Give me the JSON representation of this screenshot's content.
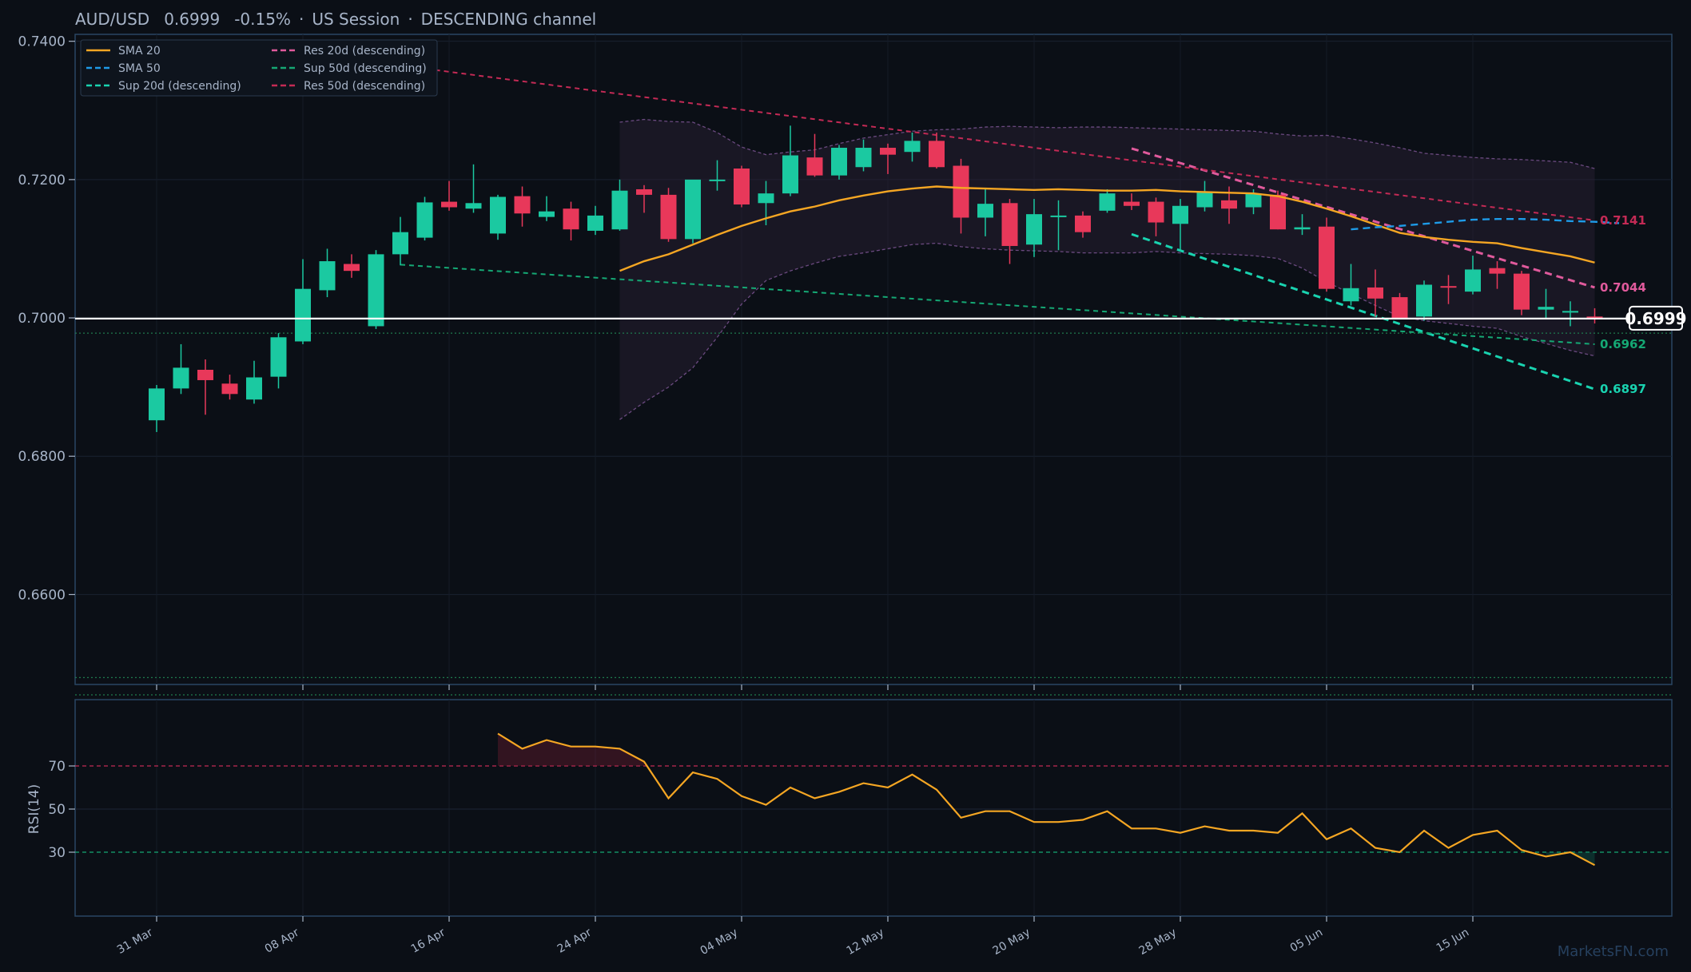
{
  "header": {
    "symbol": "AUD/USD",
    "price": "0.6999",
    "change": "-0.15%",
    "session": "US Session",
    "channel": "DESCENDING channel"
  },
  "watermark": "MarketsFN.com",
  "colors": {
    "background": "#0b0f16",
    "panel_border": "#2a4763",
    "up": "#1bc9a1",
    "down": "#e8385a",
    "sma20": "#f5a623",
    "sma50": "#1e9be8",
    "res20": "#e05a9c",
    "sup20": "#19d3b0",
    "res50": "#c42a55",
    "sup50": "#15a874",
    "rsi": "#f5a623",
    "price_line": "#ffffff"
  },
  "chart_data": [
    {
      "type": "candlestick",
      "title": "AUD/USD 0.6999 -0.15% · US Session · DESCENDING channel",
      "ylim": [
        0.647,
        0.741
      ],
      "yticks": [
        "0.6600",
        "0.6800",
        "0.7000",
        "0.7200",
        "0.7400"
      ],
      "xtick_labels": [
        {
          "label": "31 Mar",
          "index": 0
        },
        {
          "label": "08 Apr",
          "index": 6
        },
        {
          "label": "16 Apr",
          "index": 12
        },
        {
          "label": "24 Apr",
          "index": 18
        },
        {
          "label": "04 May",
          "index": 24
        },
        {
          "label": "12 May",
          "index": 30
        },
        {
          "label": "20 May",
          "index": 36
        },
        {
          "label": "28 May",
          "index": 42
        },
        {
          "label": "05 Jun",
          "index": 48
        },
        {
          "label": "15 Jun",
          "index": 54
        }
      ],
      "candles": [
        [
          0.6852,
          0.6903,
          0.6835,
          0.6898
        ],
        [
          0.6898,
          0.6962,
          0.689,
          0.6928
        ],
        [
          0.6925,
          0.694,
          0.686,
          0.691
        ],
        [
          0.6905,
          0.6918,
          0.6882,
          0.689
        ],
        [
          0.6882,
          0.6938,
          0.6876,
          0.6914
        ],
        [
          0.6915,
          0.6978,
          0.6898,
          0.6972
        ],
        [
          0.6966,
          0.7085,
          0.6962,
          0.7042
        ],
        [
          0.704,
          0.71,
          0.703,
          0.7082
        ],
        [
          0.7078,
          0.7092,
          0.7058,
          0.7068
        ],
        [
          0.6988,
          0.7098,
          0.6984,
          0.7092
        ],
        [
          0.7092,
          0.7146,
          0.7076,
          0.7124
        ],
        [
          0.7116,
          0.7175,
          0.7112,
          0.7167
        ],
        [
          0.7168,
          0.7198,
          0.7155,
          0.716
        ],
        [
          0.7158,
          0.7222,
          0.7152,
          0.7166
        ],
        [
          0.7122,
          0.7178,
          0.7113,
          0.7175
        ],
        [
          0.7176,
          0.719,
          0.7132,
          0.7151
        ],
        [
          0.7146,
          0.7176,
          0.714,
          0.7154
        ],
        [
          0.7158,
          0.7168,
          0.7112,
          0.7128
        ],
        [
          0.7126,
          0.7162,
          0.712,
          0.7148
        ],
        [
          0.7128,
          0.72,
          0.7126,
          0.7184
        ],
        [
          0.7186,
          0.7192,
          0.7152,
          0.7178
        ],
        [
          0.7178,
          0.7188,
          0.711,
          0.7114
        ],
        [
          0.7114,
          0.7198,
          0.7108,
          0.72
        ],
        [
          0.72,
          0.7228,
          0.7184,
          0.72
        ],
        [
          0.7216,
          0.722,
          0.716,
          0.7164
        ],
        [
          0.7166,
          0.7198,
          0.7134,
          0.718
        ],
        [
          0.718,
          0.7278,
          0.7176,
          0.7235
        ],
        [
          0.7232,
          0.7266,
          0.7204,
          0.7206
        ],
        [
          0.7206,
          0.725,
          0.72,
          0.7246
        ],
        [
          0.7218,
          0.7258,
          0.7212,
          0.7246
        ],
        [
          0.7246,
          0.7252,
          0.7208,
          0.7236
        ],
        [
          0.724,
          0.7268,
          0.7226,
          0.7256
        ],
        [
          0.7256,
          0.7268,
          0.7216,
          0.7218
        ],
        [
          0.722,
          0.723,
          0.7122,
          0.7145
        ],
        [
          0.7145,
          0.7186,
          0.7118,
          0.7165
        ],
        [
          0.7166,
          0.7172,
          0.7078,
          0.7104
        ],
        [
          0.7106,
          0.7172,
          0.7088,
          0.715
        ],
        [
          0.7147,
          0.717,
          0.7098,
          0.7148
        ],
        [
          0.7148,
          0.7154,
          0.7116,
          0.7124
        ],
        [
          0.7155,
          0.7186,
          0.7152,
          0.718
        ],
        [
          0.7168,
          0.718,
          0.7156,
          0.7162
        ],
        [
          0.7168,
          0.7174,
          0.7118,
          0.7138
        ],
        [
          0.7136,
          0.7172,
          0.7096,
          0.7162
        ],
        [
          0.716,
          0.7198,
          0.7154,
          0.7182
        ],
        [
          0.717,
          0.719,
          0.7136,
          0.7158
        ],
        [
          0.716,
          0.7186,
          0.715,
          0.718
        ],
        [
          0.7178,
          0.7184,
          0.7128,
          0.7128
        ],
        [
          0.7128,
          0.715,
          0.712,
          0.7131
        ],
        [
          0.7132,
          0.7145,
          0.7038,
          0.7042
        ],
        [
          0.7024,
          0.7078,
          0.7018,
          0.7043
        ],
        [
          0.7044,
          0.707,
          0.7002,
          0.7028
        ],
        [
          0.703,
          0.7036,
          0.6998,
          0.7
        ],
        [
          0.7002,
          0.7054,
          0.6996,
          0.7048
        ],
        [
          0.7046,
          0.7062,
          0.702,
          0.7044
        ],
        [
          0.7038,
          0.709,
          0.7034,
          0.707
        ],
        [
          0.7072,
          0.7082,
          0.7042,
          0.7064
        ],
        [
          0.7064,
          0.7068,
          0.7004,
          0.7012
        ],
        [
          0.7012,
          0.7042,
          0.7,
          0.7016
        ],
        [
          0.701,
          0.7024,
          0.6988,
          0.701
        ],
        [
          0.7002,
          0.7014,
          0.6992,
          0.6999
        ]
      ],
      "sma20": {
        "start_index": 19,
        "values": [
          0.7068,
          0.7082,
          0.7092,
          0.7106,
          0.712,
          0.7133,
          0.7144,
          0.7154,
          0.7161,
          0.717,
          0.7177,
          0.7183,
          0.7187,
          0.719,
          0.7188,
          0.7187,
          0.7186,
          0.7185,
          0.7186,
          0.7185,
          0.7184,
          0.7184,
          0.7185,
          0.7183,
          0.7182,
          0.7181,
          0.718,
          0.7176,
          0.7168,
          0.7158,
          0.7147,
          0.7135,
          0.7123,
          0.7117,
          0.7113,
          0.711,
          0.7108,
          0.7101,
          0.7095,
          0.7089,
          0.708
        ]
      },
      "sma50": {
        "start_index": 49,
        "values": [
          0.7128,
          0.7131,
          0.7133,
          0.7136,
          0.7139,
          0.7142,
          0.7143,
          0.7143,
          0.7142,
          0.714,
          0.7139,
          0.7137
        ]
      },
      "bollinger": {
        "start_index": 19,
        "upper": [
          0.7283,
          0.7287,
          0.7284,
          0.7283,
          0.7268,
          0.7247,
          0.7236,
          0.724,
          0.7243,
          0.7252,
          0.726,
          0.7265,
          0.727,
          0.7272,
          0.7273,
          0.7276,
          0.7277,
          0.7276,
          0.7275,
          0.7276,
          0.7276,
          0.7275,
          0.7274,
          0.7273,
          0.7272,
          0.7271,
          0.727,
          0.7266,
          0.7263,
          0.7264,
          0.7259,
          0.7253,
          0.7246,
          0.7238,
          0.7235,
          0.7232,
          0.723,
          0.7229,
          0.7227,
          0.7225,
          0.7216
        ],
        "lower": [
          0.6853,
          0.6878,
          0.69,
          0.6928,
          0.6972,
          0.702,
          0.7054,
          0.7068,
          0.7079,
          0.7089,
          0.7094,
          0.71,
          0.7106,
          0.7108,
          0.7103,
          0.71,
          0.7098,
          0.7097,
          0.7096,
          0.7094,
          0.7094,
          0.7094,
          0.7096,
          0.7094,
          0.7093,
          0.7092,
          0.709,
          0.7086,
          0.7072,
          0.7052,
          0.7035,
          0.7018,
          0.7002,
          0.6996,
          0.6992,
          0.6988,
          0.6985,
          0.6973,
          0.6963,
          0.6953,
          0.6945
        ]
      },
      "levels": [
        {
          "name": "Res 20d (descending)",
          "x_start": 40,
          "y_start": 0.7245,
          "x_end": 59,
          "y_end": 0.7044,
          "label": "0.7044",
          "color": "#e05a9c",
          "dash": "9,6",
          "width": 3
        },
        {
          "name": "Sup 20d (descending)",
          "x_start": 40,
          "y_start": 0.7121,
          "x_end": 59,
          "y_end": 0.6897,
          "label": "0.6897",
          "color": "#19d3b0",
          "dash": "9,6",
          "width": 3
        },
        {
          "name": "Res 50d (descending)",
          "x_start": 10,
          "y_start": 0.7365,
          "x_end": 59,
          "y_end": 0.7141,
          "label": "0.7141",
          "color": "#c42a55",
          "dash": "6,5",
          "width": 2
        },
        {
          "name": "Sup 50d (descending)",
          "x_start": 10,
          "y_start": 0.7077,
          "x_end": 59,
          "y_end": 0.6962,
          "label": "0.6962",
          "color": "#15a874",
          "dash": "6,5",
          "width": 2
        }
      ],
      "horizontal_dotted": [
        0.6978,
        0.648,
        0.6455
      ],
      "current_price": {
        "value": 0.6999,
        "label": "0.6999"
      },
      "legend": [
        {
          "label": "SMA 20",
          "color": "#f5a623",
          "style": "solid"
        },
        {
          "label": "SMA 50",
          "color": "#1e9be8",
          "style": "dash"
        },
        {
          "label": "Sup 20d (descending)",
          "color": "#19d3b0",
          "style": "dash"
        },
        {
          "label": "Res 20d (descending)",
          "color": "#e05a9c",
          "style": "dash"
        },
        {
          "label": "Sup 50d (descending)",
          "color": "#15a874",
          "style": "dash"
        },
        {
          "label": "Res 50d (descending)",
          "color": "#c42a55",
          "style": "dash"
        }
      ]
    },
    {
      "type": "line",
      "ylabel": "RSI(14)",
      "ylim": [
        0,
        100
      ],
      "yticks": [
        "30",
        "50",
        "70"
      ],
      "overbought": 70,
      "oversold": 30,
      "start_index": 14,
      "values": [
        85,
        78,
        82,
        79,
        79,
        78,
        72,
        55,
        67,
        64,
        56,
        52,
        60,
        55,
        58,
        62,
        60,
        66,
        59,
        46,
        49,
        49,
        44,
        44,
        45,
        49,
        41,
        41,
        39,
        42,
        40,
        40,
        39,
        48,
        36,
        41,
        32,
        30,
        40,
        32,
        38,
        40,
        31,
        28,
        30,
        24
      ]
    }
  ]
}
